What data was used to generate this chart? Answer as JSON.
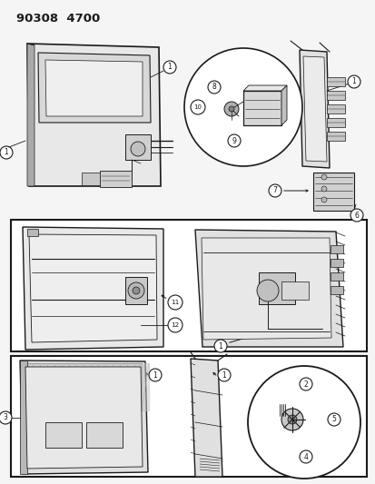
{
  "title": "90308  4700",
  "bg_color": "#f5f5f5",
  "line_color": "#1a1a1a",
  "white": "#ffffff",
  "light_gray": "#d8d8d8",
  "mid_gray": "#b8b8b8",
  "dark_gray": "#888888",
  "section_bg": "#ffffff",
  "fig_w": 4.14,
  "fig_h": 5.33,
  "dpi": 100
}
